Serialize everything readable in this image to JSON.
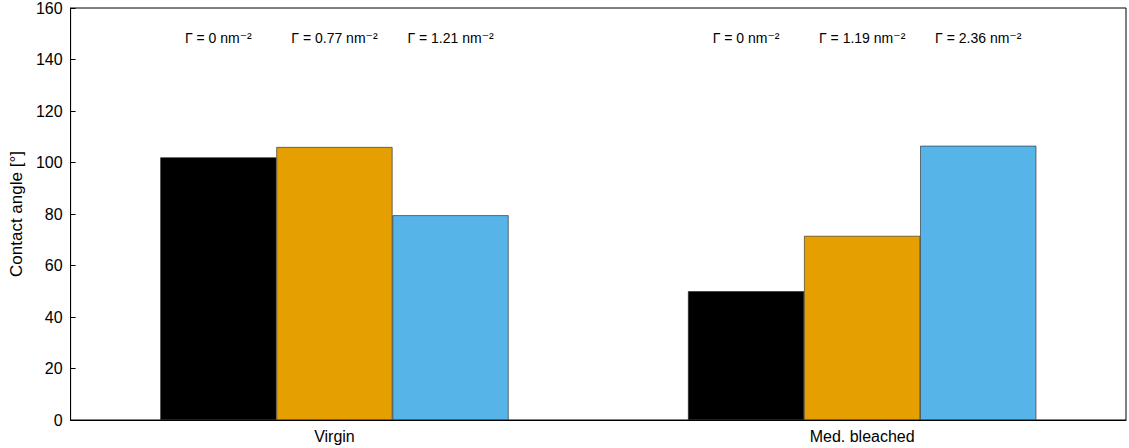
{
  "chart_data": {
    "type": "bar",
    "y_label": "Contact angle [°]",
    "categories": [
      "Virgin",
      "Med. bleached"
    ],
    "series": [
      {
        "color": "#000000",
        "values": [
          102,
          50
        ],
        "annotations": [
          "Γ = 0 nm⁻²",
          "Γ = 0 nm⁻²"
        ]
      },
      {
        "color": "#e69f00",
        "values": [
          106,
          71.5
        ],
        "annotations": [
          "Γ = 0.77 nm⁻²",
          "Γ = 1.19 nm⁻²"
        ]
      },
      {
        "color": "#56b4e9",
        "values": [
          79.5,
          106.5
        ],
        "annotations": [
          "Γ = 1.21 nm⁻²",
          "Γ = 2.36 nm⁻²"
        ]
      }
    ],
    "ylim": [
      0,
      160
    ],
    "yticks": [
      0,
      20,
      40,
      60,
      80,
      100,
      120,
      140,
      160
    ],
    "grid": false
  }
}
